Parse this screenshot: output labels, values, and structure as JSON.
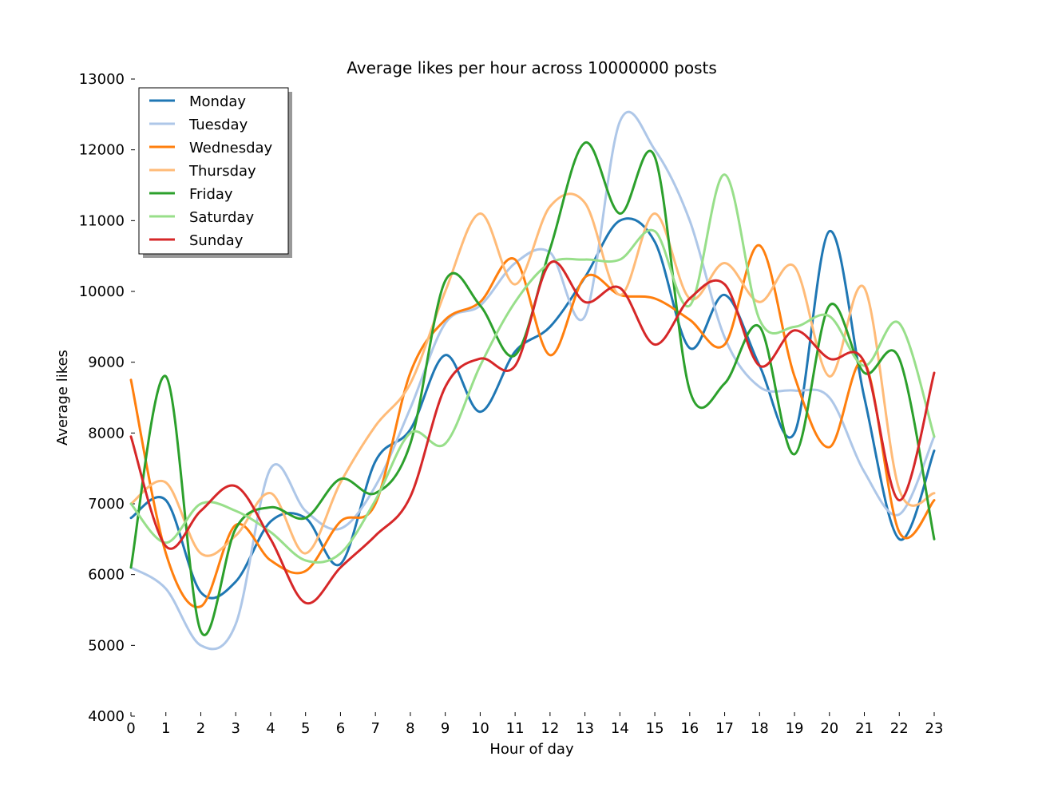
{
  "chart_data": {
    "type": "line",
    "title": "Average likes per hour across 10000000 posts",
    "xlabel": "Hour of day",
    "ylabel": "Average likes",
    "xlim": [
      0,
      23
    ],
    "ylim": [
      4000,
      13000
    ],
    "x": [
      0,
      1,
      2,
      3,
      4,
      5,
      6,
      7,
      8,
      9,
      10,
      11,
      12,
      13,
      14,
      15,
      16,
      17,
      18,
      19,
      20,
      21,
      22,
      23
    ],
    "xticks": [
      "0",
      "1",
      "2",
      "3",
      "4",
      "5",
      "6",
      "7",
      "8",
      "9",
      "10",
      "11",
      "12",
      "13",
      "14",
      "15",
      "16",
      "17",
      "18",
      "19",
      "20",
      "21",
      "22",
      "23"
    ],
    "yticks": [
      "4000",
      "5000",
      "6000",
      "7000",
      "8000",
      "9000",
      "10000",
      "11000",
      "12000",
      "13000"
    ],
    "yticks_values": [
      4000,
      5000,
      6000,
      7000,
      8000,
      9000,
      10000,
      11000,
      12000,
      13000
    ],
    "grid": false,
    "legend_position": "top-left",
    "series": [
      {
        "name": "Monday",
        "color": "#1f77b4",
        "values": [
          6800,
          7050,
          5750,
          5900,
          6750,
          6800,
          6150,
          7600,
          8050,
          9100,
          8300,
          9150,
          9500,
          10200,
          11000,
          10700,
          9200,
          9950,
          8950,
          8000,
          10850,
          8500,
          6500,
          7750
        ]
      },
      {
        "name": "Tuesday",
        "color": "#aec7e8",
        "values": [
          6100,
          5800,
          5000,
          5300,
          7500,
          6900,
          6650,
          7250,
          8350,
          9550,
          9800,
          10400,
          10550,
          9650,
          12400,
          12000,
          11000,
          9350,
          8650,
          8600,
          8500,
          7450,
          6850,
          7950
        ]
      },
      {
        "name": "Wednesday",
        "color": "#ff7f0e",
        "values": [
          8750,
          6300,
          5550,
          6700,
          6200,
          6050,
          6750,
          7000,
          8850,
          9600,
          9850,
          10450,
          9100,
          10200,
          9950,
          9900,
          9600,
          9250,
          10650,
          8800,
          7800,
          9000,
          6600,
          7050
        ]
      },
      {
        "name": "Thursday",
        "color": "#ffbb78",
        "values": [
          7000,
          7300,
          6300,
          6550,
          7150,
          6300,
          7300,
          8100,
          8700,
          10000,
          11100,
          10100,
          11200,
          11250,
          9950,
          11100,
          9900,
          10400,
          9850,
          10350,
          8800,
          10050,
          7200,
          7150
        ]
      },
      {
        "name": "Friday",
        "color": "#2ca02c",
        "values": [
          6100,
          8800,
          5200,
          6650,
          6950,
          6800,
          7350,
          7150,
          7850,
          10150,
          9800,
          9100,
          10600,
          12100,
          11100,
          11900,
          8600,
          8700,
          9500,
          7700,
          9800,
          8850,
          9050,
          6500
        ]
      },
      {
        "name": "Saturday",
        "color": "#98df8a",
        "values": [
          7000,
          6450,
          7000,
          6900,
          6600,
          6200,
          6300,
          7050,
          8000,
          7850,
          8950,
          9850,
          10400,
          10450,
          10450,
          10850,
          9800,
          11650,
          9600,
          9500,
          9650,
          8950,
          9550,
          7950
        ]
      },
      {
        "name": "Sunday",
        "color": "#d62728",
        "values": [
          7950,
          6400,
          6900,
          7250,
          6500,
          5600,
          6100,
          6550,
          7100,
          8650,
          9050,
          8950,
          10400,
          9850,
          10050,
          9250,
          9900,
          10100,
          8950,
          9450,
          9050,
          9000,
          7050,
          8850
        ]
      }
    ]
  }
}
